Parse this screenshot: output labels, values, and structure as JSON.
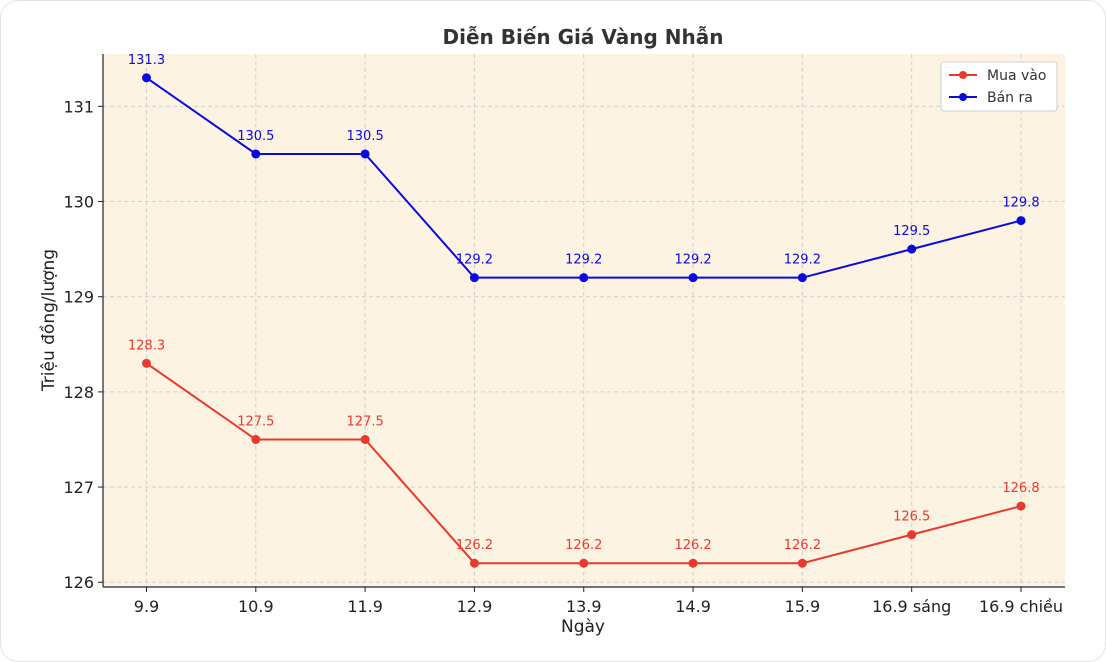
{
  "chart_data": {
    "type": "line",
    "title": "Diễn Biến Giá Vàng Nhẫn",
    "xlabel": "Ngày",
    "ylabel": "Triệu đồng/lượng",
    "categories": [
      "9.9",
      "10.9",
      "11.9",
      "12.9",
      "13.9",
      "14.9",
      "15.9",
      "16.9 sáng",
      "16.9 chiều"
    ],
    "series": [
      {
        "name": "Mua vào",
        "color": "#e8392e",
        "values": [
          128.3,
          127.5,
          127.5,
          126.2,
          126.2,
          126.2,
          126.2,
          126.5,
          126.8
        ],
        "labels": [
          "128.3",
          "127.5",
          "127.5",
          "126.2",
          "126.2",
          "126.2",
          "126.2",
          "126.5",
          "126.8"
        ]
      },
      {
        "name": "Bán ra",
        "color": "#0a0ae0",
        "values": [
          131.3,
          130.5,
          130.5,
          129.2,
          129.2,
          129.2,
          129.2,
          129.5,
          129.8
        ],
        "labels": [
          "131.3",
          "130.5",
          "130.5",
          "129.2",
          "129.2",
          "129.2",
          "129.2",
          "129.5",
          "129.8"
        ]
      }
    ],
    "ylim": [
      125.95,
      131.55
    ],
    "yticks": [
      "126",
      "127",
      "128",
      "129",
      "130",
      "131"
    ],
    "grid": true,
    "legend_position": "top-right",
    "plot_background": "#fdf3e3"
  }
}
